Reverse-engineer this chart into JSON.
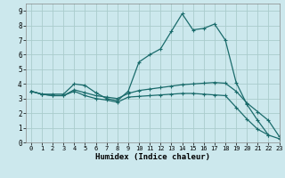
{
  "xlabel": "Humidex (Indice chaleur)",
  "background_color": "#cce8ed",
  "grid_color": "#aacccc",
  "line_color": "#1a6b6b",
  "xlim": [
    -0.5,
    23
  ],
  "ylim": [
    0,
    9.5
  ],
  "xticks": [
    0,
    1,
    2,
    3,
    4,
    5,
    6,
    7,
    8,
    9,
    10,
    11,
    12,
    13,
    14,
    15,
    16,
    17,
    18,
    19,
    20,
    21,
    22,
    23
  ],
  "yticks": [
    0,
    1,
    2,
    3,
    4,
    5,
    6,
    7,
    8,
    9
  ],
  "line1_x": [
    0,
    1,
    2,
    3,
    4,
    5,
    6,
    7,
    8,
    9,
    10,
    11,
    12,
    13,
    14,
    15,
    16,
    17,
    18,
    19,
    20,
    21,
    22,
    23
  ],
  "line1_y": [
    3.5,
    3.3,
    3.3,
    3.3,
    4.0,
    3.9,
    3.4,
    3.0,
    2.85,
    3.5,
    5.5,
    6.0,
    6.4,
    7.6,
    8.8,
    7.7,
    7.8,
    8.1,
    7.0,
    4.1,
    2.6,
    1.5,
    0.5,
    null
  ],
  "line2_x": [
    0,
    1,
    2,
    3,
    4,
    5,
    6,
    7,
    8,
    9,
    10,
    11,
    12,
    13,
    14,
    15,
    16,
    17,
    18,
    19,
    20,
    21,
    22,
    23
  ],
  "line2_y": [
    3.5,
    3.3,
    3.2,
    3.2,
    3.6,
    3.4,
    3.2,
    3.1,
    3.0,
    3.35,
    3.55,
    3.65,
    3.75,
    3.85,
    3.95,
    4.0,
    4.05,
    4.1,
    4.05,
    3.5,
    2.7,
    2.1,
    1.5,
    0.4
  ],
  "line3_x": [
    0,
    1,
    2,
    3,
    4,
    5,
    6,
    7,
    8,
    9,
    10,
    11,
    12,
    13,
    14,
    15,
    16,
    17,
    18,
    19,
    20,
    21,
    22,
    23
  ],
  "line3_y": [
    3.5,
    3.3,
    3.2,
    3.2,
    3.5,
    3.2,
    3.0,
    2.9,
    2.75,
    3.1,
    3.15,
    3.2,
    3.25,
    3.3,
    3.35,
    3.35,
    3.3,
    3.25,
    3.2,
    2.4,
    1.6,
    0.9,
    0.5,
    0.25
  ]
}
